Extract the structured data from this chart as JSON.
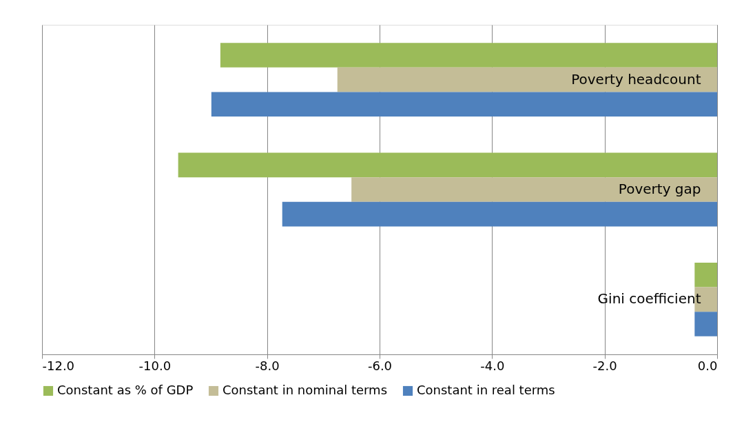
{
  "chart_data": {
    "type": "bar",
    "orientation": "horizontal",
    "categories": [
      "Poverty headcount",
      "Poverty gap",
      "Gini coefficient"
    ],
    "series": [
      {
        "name": "Constant as % of GDP",
        "color": "#9bbb59",
        "values": [
          -8.83,
          -9.58,
          -0.4
        ]
      },
      {
        "name": "Constant in nominal terms",
        "color": "#c4bd97",
        "values": [
          -6.75,
          -6.5,
          -0.4
        ]
      },
      {
        "name": "Constant in real terms",
        "color": "#4f81bd",
        "values": [
          -8.99,
          -7.73,
          -0.4
        ]
      }
    ],
    "xlim": [
      -12,
      0
    ],
    "xticks": [
      {
        "value": -12,
        "label": "-12.0"
      },
      {
        "value": -10,
        "label": "-10.0"
      },
      {
        "value": -8,
        "label": "-8.0"
      },
      {
        "value": -6,
        "label": "-6.0"
      },
      {
        "value": -4,
        "label": "-4.0"
      },
      {
        "value": -2,
        "label": "-2.0"
      },
      {
        "value": 0,
        "label": "0.0"
      }
    ],
    "grid": "x",
    "legend": "bottom"
  }
}
